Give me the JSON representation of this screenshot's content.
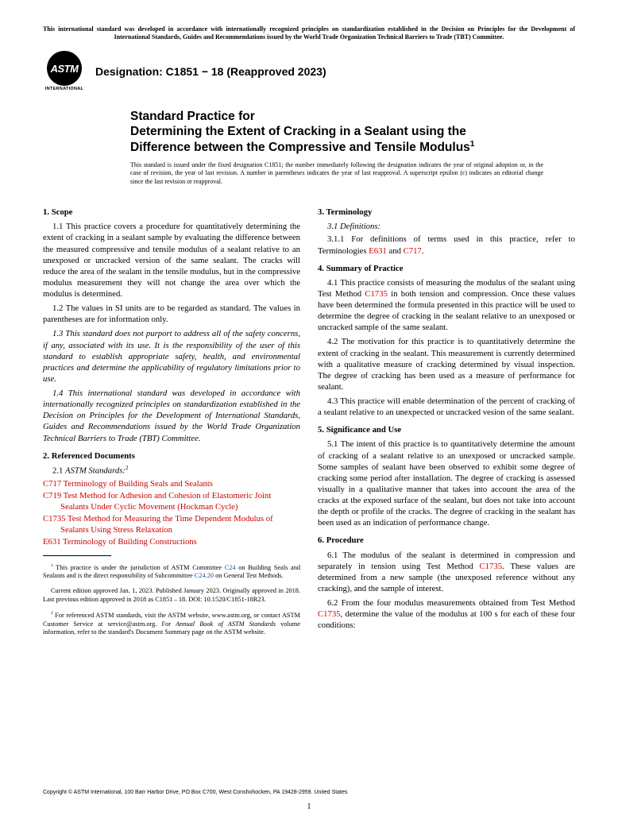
{
  "tbt_note": "This international standard was developed in accordance with internationally recognized principles on standardization established in the Decision on Principles for the Development of International Standards, Guides and Recommendations issued by the World Trade Organization Technical Barriers to Trade (TBT) Committee.",
  "logo_text": "ASTM",
  "logo_sub": "INTERNATIONAL",
  "designation": "Designation: C1851 − 18 (Reapproved 2023)",
  "title_l1": "Standard Practice for",
  "title_l2": "Determining the Extent of Cracking in a Sealant using the",
  "title_l3_a": "Difference between the Compressive and Tensile Modulus",
  "title_sup": "1",
  "issued_note": "This standard is issued under the fixed designation C1851; the number immediately following the designation indicates the year of original adoption or, in the case of revision, the year of last revision. A number in parentheses indicates the year of last reapproval. A superscript epsilon (ε) indicates an editorial change since the last revision or reapproval.",
  "left": {
    "scope_head": "1. Scope",
    "p11": "1.1 This practice covers a procedure for quantitatively determining the extent of cracking in a sealant sample by evaluating the difference between the measured compressive and tensile modulus of a sealant relative to an unexposed or uncracked version of the same sealant. The cracks will reduce the area of the sealant in the tensile modulus, but in the compressive modulus measurement they will not change the area over which the modulus is determined.",
    "p12": "1.2 The values in SI units are to be regarded as standard. The values in parentheses are for information only.",
    "p13": "1.3 This standard does not purport to address all of the safety concerns, if any, associated with its use. It is the responsibility of the user of this standard to establish appropriate safety, health, and environmental practices and determine the applicability of regulatory limitations prior to use.",
    "p14": "1.4 This international standard was developed in accordance with internationally recognized principles on standardization established in the Decision on Principles for the Development of International Standards, Guides and Recommendations issued by the World Trade Organization Technical Barriers to Trade (TBT) Committee.",
    "refdocs_head": "2. Referenced Documents",
    "p21_a": "2.1 ",
    "p21_b": "ASTM Standards:",
    "p21_sup": "2",
    "ref_c717": "C717 Terminology of Building Seals and Sealants",
    "ref_c719": "C719 Test Method for Adhesion and Cohesion of Elastomeric Joint Sealants Under Cyclic Movement (Hockman Cycle)",
    "ref_c1735": "C1735 Test Method for Measuring the Time Dependent Modulus of Sealants Using Stress Relaxation",
    "ref_e631": "E631 Terminology of Building Constructions",
    "fn1_a": " This practice is under the jurisdiction of ASTM Committee ",
    "fn1_b": "C24",
    "fn1_c": " on Building Seals and Sealants and is the direct responsibility of Subcommittee ",
    "fn1_d": "C24.20",
    "fn1_e": " on General Test Methods.",
    "fn1b": "Current edition approved Jan. 1, 2023. Published January 2023. Originally approved in 2018. Last previous edition approved in 2018 as C1851 – 18. DOI: 10.1520/C1851-18R23.",
    "fn2_a": " For referenced ASTM standards, visit the ASTM website, www.astm.org, or contact ASTM Customer Service at service@astm.org. For ",
    "fn2_b": "Annual Book of ASTM Standards",
    "fn2_c": " volume information, refer to the standard's Document Summary page on the ASTM website."
  },
  "right": {
    "term_head": "3. Terminology",
    "p31": "3.1 Definitions:",
    "p311_a": "3.1.1 For definitions of terms used in this practice, refer to Terminologies ",
    "p311_b": "E631",
    "p311_c": " and ",
    "p311_d": "C717",
    "p311_e": ".",
    "sum_head": "4. Summary of Practice",
    "p41_a": "4.1 This practice consists of measuring the modulus of the sealant using Test Method ",
    "p41_b": "C1735",
    "p41_c": " in both tension and compression. Once these values have been determined the formula presented in this practice will be used to determine the degree of cracking in the sealant relative to an unexposed or uncracked sample of the same sealant.",
    "p42": "4.2 The motivation for this practice is to quantitatively determine the extent of cracking in the sealant. This measurement is currently determined with a qualitative measure of cracking determined by visual inspection. The degree of cracking has been used as a measure of performance for sealant.",
    "p43": "4.3 This practice will enable determination of the percent of cracking of a sealant relative to an unexpected or uncracked vesion of the same sealant.",
    "sig_head": "5. Significance and Use",
    "p51": "5.1 The intent of this practice is to quantitatively determine the amount of cracking of a sealant relative to an unexposed or uncracked sample. Some samples of sealant have been observed to exhibit some degree of cracking some period after installation. The degree of cracking is assessed visually in a qualitative manner that takes into account the area of the cracks at the exposed surface of the sealant, but does not take into account the depth or profile of the cracks. The degree of cracking in the sealant has been used as an indication of performance change.",
    "proc_head": "6. Procedure",
    "p61_a": "6.1 The modulus of the sealant is determined in compression and separately in tension using Test Method ",
    "p61_b": "C1735",
    "p61_c": ". These values are determined from a new sample (the unexposed reference without any cracking), and the sample of interest.",
    "p62_a": "6.2 From the four modulus measurements obtained from Test Method ",
    "p62_b": "C1735",
    "p62_c": ", determine the value of the modulus at 100 s for each of these four conditions:"
  },
  "copyright": "Copyright © ASTM International, 100 Barr Harbor Drive, PO Box C700, West Conshohocken, PA 19428-2959. United States",
  "pagenum": "1"
}
